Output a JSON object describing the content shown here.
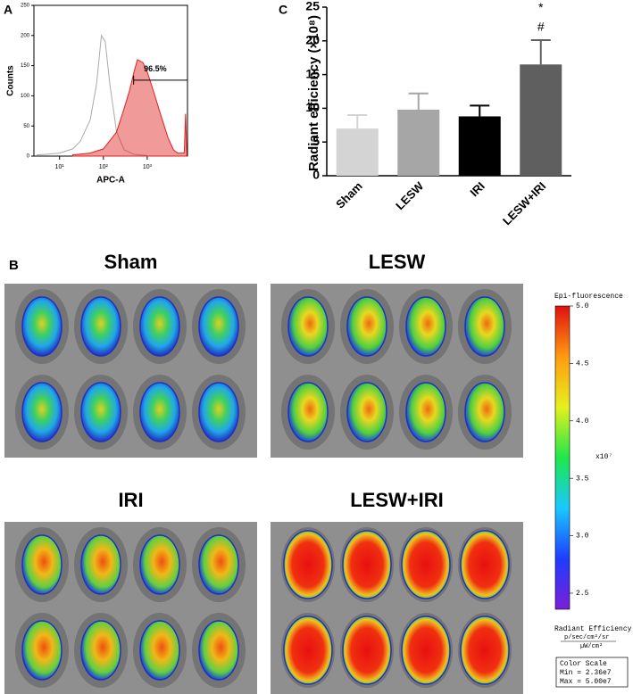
{
  "chart_data": [
    {
      "type": "histogram-line",
      "panel": "A",
      "xlabel": "APC-A",
      "ylabel": "Counts",
      "xscale": "log",
      "xlim": [
        2.6,
        8300
      ],
      "ylim": [
        0,
        250
      ],
      "xticks": [
        {
          "value": 10,
          "label": "10¹"
        },
        {
          "value": 100,
          "label": "10²"
        },
        {
          "value": 1000,
          "label": "10³"
        }
      ],
      "yticks": [
        0,
        50,
        100,
        150,
        200,
        250
      ],
      "series": [
        {
          "color": "#aaaaaa",
          "fill": false,
          "x": [
            3,
            5,
            10,
            20,
            30,
            50,
            70,
            90,
            110,
            140,
            200,
            300,
            500,
            1000
          ],
          "values": [
            2,
            3,
            5,
            12,
            25,
            60,
            120,
            200,
            190,
            120,
            40,
            10,
            3,
            1
          ]
        },
        {
          "color": "#e02020",
          "fill": true,
          "x": [
            20,
            50,
            100,
            200,
            300,
            400,
            500,
            600,
            800,
            1000,
            1500,
            2000,
            3000,
            4000,
            5000,
            6000,
            7000,
            7500,
            8000
          ],
          "values": [
            2,
            5,
            12,
            40,
            80,
            110,
            140,
            160,
            155,
            140,
            100,
            70,
            30,
            10,
            5,
            5,
            5,
            70,
            5
          ]
        }
      ],
      "gate": {
        "range": [
          490,
          8300
        ],
        "level": 126,
        "label": "96.5%"
      }
    },
    {
      "type": "bar",
      "panel": "C",
      "ylabel": "Radiant efficiency (×10⁸)",
      "categories": [
        "Sham",
        "LESW",
        "IRI",
        "LESW+IRI"
      ],
      "values": [
        7,
        9.8,
        8.8,
        16.5
      ],
      "errors": [
        2,
        2.4,
        1.6,
        3.6
      ],
      "colors": [
        "#d4d4d4",
        "#a6a6a6",
        "#000000",
        "#5f5f5f"
      ],
      "ylim": [
        0,
        25
      ],
      "yticks": [
        0,
        5,
        10,
        15,
        20,
        25
      ],
      "significance": [
        {
          "category": "LESW+IRI",
          "symbols": [
            "*",
            "#"
          ]
        }
      ]
    },
    {
      "type": "colorbar",
      "title": "Epi-fluorescence",
      "unit": "x10⁷",
      "ylim": [
        2.36,
        5.0
      ],
      "yticks": [
        {
          "value": 2.5,
          "label": "2.5"
        },
        {
          "value": 3.0,
          "label": "3.0"
        },
        {
          "value": 3.5,
          "label": "3.5"
        },
        {
          "value": 4.0,
          "label": "4.0"
        },
        {
          "value": 4.5,
          "label": "4.5"
        },
        {
          "value": 5.0,
          "label": "5.0"
        }
      ],
      "colors": [
        "#7a1fd6",
        "#1f3cff",
        "#19c8ff",
        "#1ee84a",
        "#e6f01e",
        "#ff9a10",
        "#e01010"
      ],
      "quantity": "Radiant Efficiency",
      "unit_numerator": "p/sec/cm²/sr",
      "unit_denominator": "µW/cm²",
      "scale_box": [
        "Color Scale",
        "Min = 2.36e7",
        "Max = 5.00e7"
      ]
    }
  ],
  "figure": {
    "panel_b": "B",
    "groups": [
      "Sham",
      "LESW",
      "IRI",
      "LESW+IRI"
    ]
  }
}
